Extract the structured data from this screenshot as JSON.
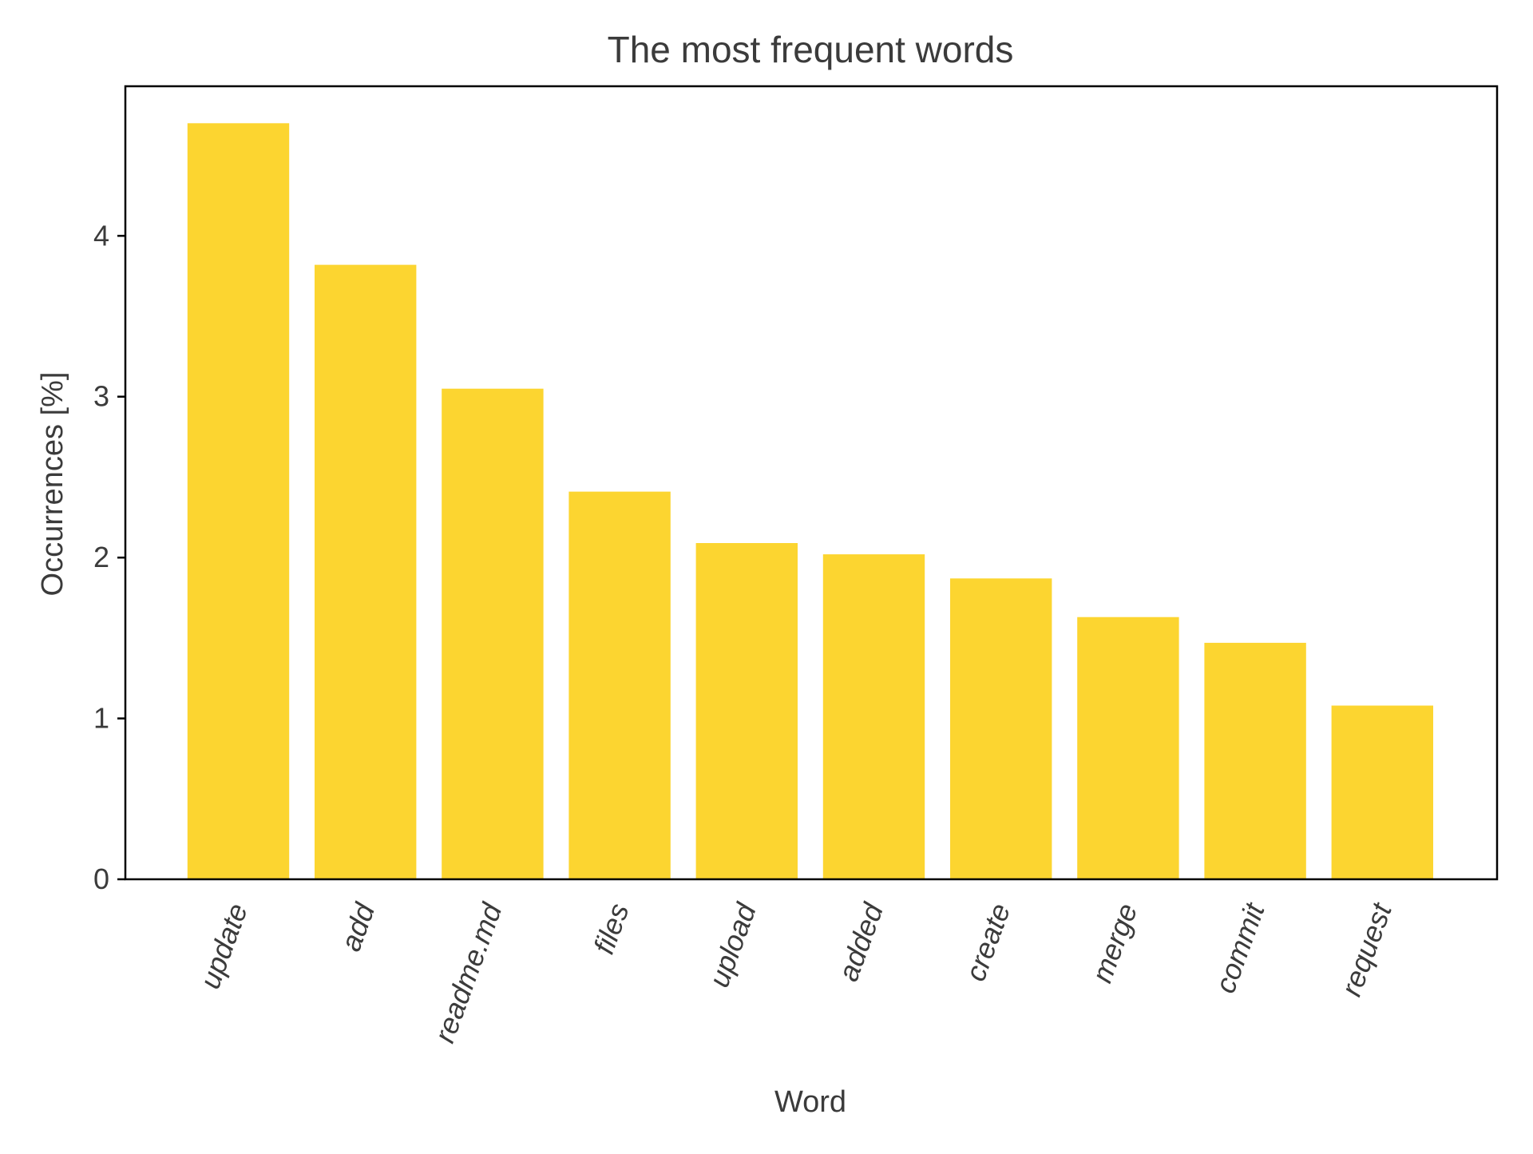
{
  "chart_data": {
    "type": "bar",
    "title": "The most frequent words",
    "xlabel": "Word",
    "ylabel": "Occurrences [%]",
    "categories": [
      "update",
      "add",
      "readme.md",
      "files",
      "upload",
      "added",
      "create",
      "merge",
      "commit",
      "request"
    ],
    "values": [
      4.7,
      3.82,
      3.05,
      2.41,
      2.09,
      2.02,
      1.87,
      1.63,
      1.47,
      1.08
    ],
    "ylim": [
      0,
      4.93
    ],
    "yticks": [
      0,
      1,
      2,
      3,
      4
    ],
    "bar_color": "#FCD530",
    "grid": false,
    "legend": "none"
  }
}
